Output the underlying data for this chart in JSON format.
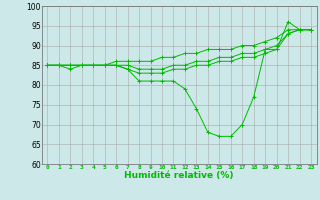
{
  "xlabel": "Humidité relative (%)",
  "background_color": "#cce8e8",
  "grid_color": "#aaaaaa",
  "line_color": "#00bb00",
  "xlim_min": -0.5,
  "xlim_max": 23.5,
  "ylim": [
    60,
    100
  ],
  "yticks": [
    60,
    65,
    70,
    75,
    80,
    85,
    90,
    95,
    100
  ],
  "xtick_labels": [
    "0",
    "1",
    "2",
    "3",
    "4",
    "5",
    "6",
    "7",
    "8",
    "9",
    "10",
    "11",
    "12",
    "13",
    "14",
    "15",
    "16",
    "17",
    "18",
    "19",
    "20",
    "21",
    "22",
    "23"
  ],
  "series": [
    [
      85,
      85,
      84,
      85,
      85,
      85,
      85,
      84,
      81,
      81,
      81,
      81,
      79,
      74,
      68,
      67,
      67,
      70,
      77,
      89,
      89,
      96,
      94,
      94
    ],
    [
      85,
      85,
      85,
      85,
      85,
      85,
      85,
      84,
      83,
      83,
      83,
      84,
      84,
      85,
      85,
      86,
      86,
      87,
      87,
      88,
      89,
      93,
      94,
      94
    ],
    [
      85,
      85,
      85,
      85,
      85,
      85,
      85,
      85,
      84,
      84,
      84,
      85,
      85,
      86,
      86,
      87,
      87,
      88,
      88,
      89,
      90,
      93,
      94,
      94
    ],
    [
      85,
      85,
      85,
      85,
      85,
      85,
      86,
      86,
      86,
      86,
      87,
      87,
      88,
      88,
      89,
      89,
      89,
      90,
      90,
      91,
      92,
      94,
      94,
      94
    ]
  ]
}
